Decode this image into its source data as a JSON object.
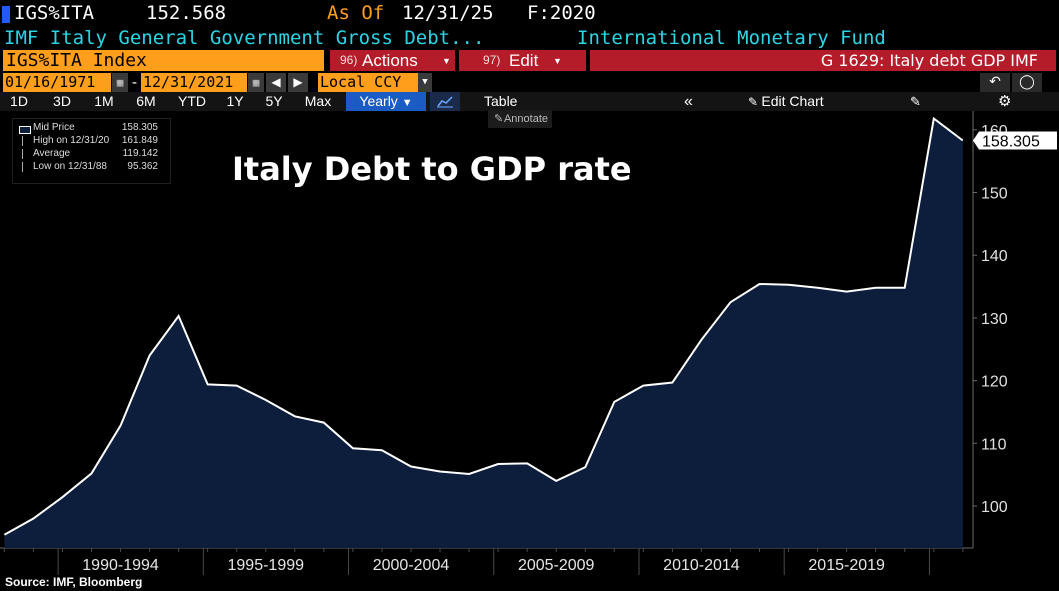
{
  "header": {
    "ticker": "IGS%ITA",
    "last_value": "152.568",
    "as_of_label": "As Of",
    "as_of_date": "12/31/25",
    "field": "F:2020",
    "description": "IMF Italy General Government Gross Debt...",
    "source_name": "International Monetary Fund"
  },
  "toolbar": {
    "security": "IGS%ITA Index",
    "actions_num": "96)",
    "actions_label": "Actions",
    "edit_num": "97)",
    "edit_label": "Edit",
    "chart_id": "G 1629: Italy debt GDP IMF"
  },
  "range": {
    "start_date": "01/16/1971",
    "separator": "-",
    "end_date": "12/31/2021",
    "currency": "Local CCY"
  },
  "periods": [
    "1D",
    "3D",
    "1M",
    "6M",
    "YTD",
    "1Y",
    "5Y",
    "Max"
  ],
  "frequency": "Yearly",
  "table_label": "Table",
  "edit_chart_label": "Edit Chart",
  "annotate_label": "Annotate",
  "legend": {
    "items": [
      {
        "label": "Mid Price",
        "value": "158.305"
      },
      {
        "label": "High on 12/31/20",
        "value": "161.849"
      },
      {
        "label": "Average",
        "value": "119.142"
      },
      {
        "label": "Low on 12/31/88",
        "value": "95.362"
      }
    ]
  },
  "colors": {
    "line": "#ffffff",
    "area": "#0d1e3c",
    "accent_orange": "#ff9e1b",
    "accent_red": "#b31c28",
    "accent_cyan": "#2ad6e6"
  },
  "footer": {
    "source": "Source: IMF, Bloomberg"
  },
  "chart_data": {
    "type": "area",
    "title": "Italy Debt to GDP rate",
    "x": [
      1988,
      1989,
      1990,
      1991,
      1992,
      1993,
      1994,
      1995,
      1996,
      1997,
      1998,
      1999,
      2000,
      2001,
      2002,
      2003,
      2004,
      2005,
      2006,
      2007,
      2008,
      2009,
      2010,
      2011,
      2012,
      2013,
      2014,
      2015,
      2016,
      2017,
      2018,
      2019,
      2020,
      2021
    ],
    "values": [
      95.4,
      98.0,
      101.4,
      105.2,
      112.8,
      124.0,
      130.3,
      119.4,
      119.2,
      116.9,
      114.3,
      113.3,
      109.2,
      108.9,
      106.3,
      105.5,
      105.1,
      106.7,
      106.8,
      104.0,
      106.2,
      116.6,
      119.2,
      119.7,
      126.5,
      132.5,
      135.4,
      135.3,
      134.8,
      134.2,
      134.8,
      134.8,
      161.8,
      158.3
    ],
    "x_tick_labels": [
      "1990-1994",
      "1995-1999",
      "2000-2004",
      "2005-2009",
      "2010-2014",
      "2015-2019"
    ],
    "y_ticks": [
      100,
      110,
      120,
      130,
      140,
      150,
      160
    ],
    "ylim": [
      93.3,
      163
    ],
    "last_value_label": "158.305",
    "grid": false
  }
}
